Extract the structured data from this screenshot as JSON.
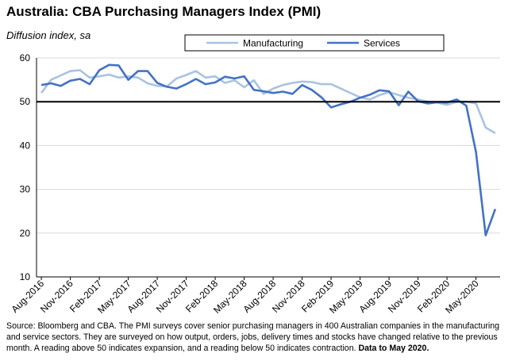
{
  "chart_data": {
    "type": "line",
    "title": "Australia: CBA Purchasing Managers Index (PMI)",
    "subtitle": "Diffusion index, sa",
    "ylim": [
      10,
      60
    ],
    "yticks": [
      10,
      20,
      30,
      40,
      50,
      60
    ],
    "reference_line": 50,
    "x_tick_labels": [
      "Aug-2016",
      "Nov-2016",
      "Feb-2017",
      "May-2017",
      "Aug-2017",
      "Nov-2017",
      "Feb-2018",
      "May-2018",
      "Aug-2018",
      "Nov-2018",
      "Feb-2019",
      "May-2019",
      "Aug-2019",
      "Nov-2019",
      "Feb-2020",
      "May-2020"
    ],
    "legend_position": "top",
    "series": [
      {
        "name": "Manufacturing",
        "color": "#a9c3e0",
        "values": [
          52.0,
          55.0,
          56.0,
          57.0,
          57.2,
          55.5,
          55.8,
          56.2,
          55.5,
          55.8,
          55.5,
          54.2,
          53.6,
          53.5,
          55.3,
          56.1,
          57.0,
          55.5,
          55.8,
          54.3,
          54.9,
          53.3,
          54.9,
          51.8,
          53.0,
          53.8,
          54.3,
          54.6,
          54.5,
          54.0,
          54.0,
          53.0,
          52.0,
          51.0,
          50.5,
          51.5,
          52.2,
          51.5,
          50.9,
          50.5,
          50.0,
          49.8,
          49.3,
          50.0,
          50.0,
          49.6,
          44.1,
          42.8
        ]
      },
      {
        "name": "Services",
        "color": "#4472c4",
        "values": [
          53.8,
          54.2,
          53.6,
          54.8,
          55.2,
          54.0,
          57.2,
          58.4,
          58.3,
          55.0,
          57.0,
          57.0,
          54.3,
          53.4,
          53.0,
          54.0,
          55.2,
          54.0,
          54.4,
          55.7,
          55.3,
          55.8,
          52.7,
          52.4,
          52.0,
          52.3,
          51.8,
          53.8,
          52.7,
          51.0,
          48.7,
          49.4,
          50.0,
          50.9,
          51.6,
          52.6,
          52.4,
          49.2,
          52.3,
          50.1,
          49.6,
          49.9,
          49.8,
          50.5,
          49.1,
          38.5,
          19.5,
          25.5
        ]
      }
    ]
  },
  "footer": {
    "source_text": "Source: Bloomberg and CBA.  The PMI surveys cover senior purchasing managers in 400 Australian companies in the manufacturing and service sectors.  They are surveyed on how output, orders, jobs, delivery times and stocks have changed relative to the previous month.  A reading above 50 indicates expansion, and a reading below 50 indicates contraction.",
    "data_note": "Data to May 2020."
  }
}
